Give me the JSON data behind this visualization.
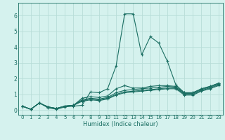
{
  "xlabel": "Humidex (Indice chaleur)",
  "xlim": [
    -0.5,
    23.5
  ],
  "ylim": [
    -0.3,
    6.8
  ],
  "xticks": [
    0,
    1,
    2,
    3,
    4,
    5,
    6,
    7,
    8,
    9,
    10,
    11,
    12,
    13,
    14,
    15,
    16,
    17,
    18,
    19,
    20,
    21,
    22,
    23
  ],
  "yticks": [
    0,
    1,
    2,
    3,
    4,
    5,
    6
  ],
  "bg_color": "#d5f2ee",
  "grid_color": "#b8ddd8",
  "line_color": "#1a6e62",
  "lines": [
    [
      0.25,
      0.05,
      0.45,
      0.15,
      0.05,
      0.2,
      0.25,
      0.3,
      1.15,
      1.1,
      1.35,
      2.8,
      6.1,
      6.1,
      3.5,
      4.65,
      4.25,
      3.1,
      1.6,
      1.1,
      1.1,
      1.35,
      1.5,
      1.7
    ],
    [
      0.25,
      0.05,
      0.45,
      0.2,
      0.1,
      0.25,
      0.3,
      0.75,
      0.85,
      0.8,
      0.9,
      1.35,
      1.55,
      1.4,
      1.4,
      1.5,
      1.55,
      1.55,
      1.5,
      1.1,
      1.1,
      1.35,
      1.5,
      1.7
    ],
    [
      0.25,
      0.05,
      0.45,
      0.2,
      0.1,
      0.25,
      0.3,
      0.65,
      0.75,
      0.7,
      0.8,
      1.1,
      1.25,
      1.3,
      1.35,
      1.4,
      1.45,
      1.5,
      1.45,
      1.05,
      1.05,
      1.3,
      1.45,
      1.65
    ],
    [
      0.25,
      0.05,
      0.45,
      0.2,
      0.1,
      0.25,
      0.3,
      0.6,
      0.7,
      0.65,
      0.75,
      1.0,
      1.15,
      1.2,
      1.25,
      1.3,
      1.35,
      1.4,
      1.4,
      1.0,
      1.0,
      1.25,
      1.4,
      1.6
    ],
    [
      0.25,
      0.05,
      0.45,
      0.2,
      0.1,
      0.25,
      0.3,
      0.55,
      0.65,
      0.6,
      0.7,
      0.95,
      1.1,
      1.15,
      1.2,
      1.25,
      1.3,
      1.35,
      1.35,
      0.95,
      0.95,
      1.2,
      1.35,
      1.55
    ]
  ]
}
